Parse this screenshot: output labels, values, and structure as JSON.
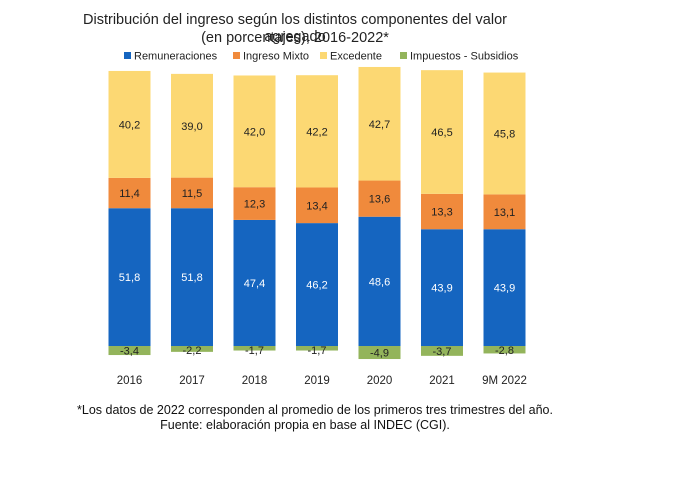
{
  "chart_data": {
    "type": "bar",
    "stacked": true,
    "title": "Distribución del ingreso según los distintos componentes del valor agregado",
    "subtitle": "(en porcentajes), 2016-2022*",
    "categories": [
      "2016",
      "2017",
      "2018",
      "2019",
      "2020",
      "2021",
      "9M 2022"
    ],
    "series": [
      {
        "name": "Remuneraciones",
        "color": "#1565C0",
        "values": [
          51.8,
          51.8,
          47.4,
          46.2,
          48.6,
          43.9,
          43.9
        ],
        "labels": [
          "51,8",
          "51,8",
          "47,4",
          "46,2",
          "48,6",
          "43,9",
          "43,9"
        ]
      },
      {
        "name": "Ingreso Mixto",
        "color": "#F08A3C",
        "values": [
          11.4,
          11.5,
          12.3,
          13.4,
          13.6,
          13.3,
          13.1
        ],
        "labels": [
          "11,4",
          "11,5",
          "12,3",
          "13,4",
          "13,6",
          "13,3",
          "13,1"
        ]
      },
      {
        "name": "Excedente",
        "color": "#FCD873",
        "values": [
          40.2,
          39.0,
          42.0,
          42.2,
          42.7,
          46.5,
          45.8
        ],
        "labels": [
          "40,2",
          "39,0",
          "42,0",
          "42,2",
          "42,7",
          "46,5",
          "45,8"
        ]
      },
      {
        "name": "Impuestos - Subsidios",
        "color": "#93B45B",
        "values": [
          -3.4,
          -2.2,
          -1.7,
          -1.7,
          -4.9,
          -3.7,
          -2.8
        ],
        "labels": [
          "-3,4",
          "-2,2",
          "-1,7",
          "-1,7",
          "-4,9",
          "-3,7",
          "-2,8"
        ]
      }
    ],
    "legend_position": "top",
    "grid": false,
    "ylim": [
      -5,
      105
    ]
  },
  "notes": {
    "line1": "*Los datos de 2022 corresponden al promedio de los primeros tres trimestres del año.",
    "line2": "Fuente: elaboración propia en base al INDEC (CGI)."
  }
}
